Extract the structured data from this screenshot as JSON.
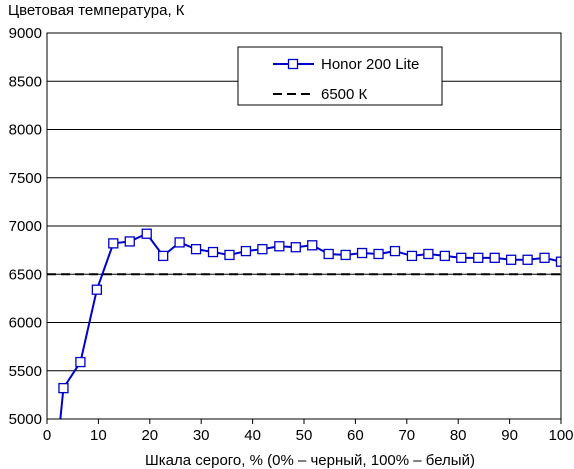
{
  "chart_data": {
    "type": "line",
    "title": "",
    "ylabel": "Цветовая температура, К",
    "xlabel": "Шкала серого, % (0% – черный, 100% – белый)",
    "xlim": [
      0,
      100
    ],
    "ylim": [
      5000,
      9000
    ],
    "x_ticks": [
      "0",
      "10",
      "20",
      "30",
      "40",
      "50",
      "60",
      "70",
      "80",
      "90",
      "100"
    ],
    "y_ticks": [
      "5000",
      "5500",
      "6000",
      "6500",
      "7000",
      "7500",
      "8000",
      "8500",
      "9000"
    ],
    "grid": true,
    "legend_position": "top-right",
    "series": [
      {
        "name": "Honor 200 Lite",
        "color": "#0000cc",
        "marker": "square",
        "x": [
          2.5,
          3.2,
          6.5,
          9.7,
          12.9,
          16.1,
          19.4,
          22.6,
          25.8,
          29.0,
          32.3,
          35.5,
          38.7,
          41.9,
          45.2,
          48.4,
          51.6,
          54.8,
          58.1,
          61.3,
          64.5,
          67.7,
          71.0,
          74.2,
          77.4,
          80.6,
          83.9,
          87.1,
          90.3,
          93.5,
          96.8,
          100
        ],
        "y": [
          4950,
          5320,
          5590,
          6340,
          6820,
          6840,
          6920,
          6690,
          6830,
          6760,
          6730,
          6700,
          6740,
          6760,
          6790,
          6780,
          6800,
          6710,
          6700,
          6720,
          6710,
          6740,
          6690,
          6710,
          6690,
          6670,
          6670,
          6670,
          6650,
          6650,
          6670,
          6630
        ]
      },
      {
        "name": "6500 К",
        "color": "#000000",
        "style": "dashed",
        "x": [
          0,
          100
        ],
        "y": [
          6500,
          6500
        ]
      }
    ]
  }
}
